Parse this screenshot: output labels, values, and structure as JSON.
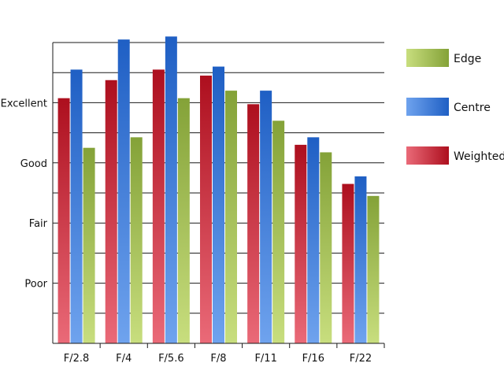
{
  "chart_data": {
    "type": "bar",
    "categories": [
      "F/2.8",
      "F/4",
      "F/5.6",
      "F/8",
      "F/11",
      "F/16",
      "F/22"
    ],
    "series": [
      {
        "name": "Weighted",
        "values": [
          8.15,
          8.75,
          9.1,
          8.9,
          7.95,
          6.6,
          5.3
        ]
      },
      {
        "name": "Centre",
        "values": [
          9.1,
          10.1,
          10.2,
          9.2,
          8.4,
          6.85,
          5.55
        ]
      },
      {
        "name": "Edge",
        "values": [
          6.5,
          6.85,
          8.15,
          8.4,
          7.4,
          6.35,
          4.9
        ]
      }
    ],
    "y_tick_labels": [
      {
        "label": "Poor",
        "value": 2
      },
      {
        "label": "Fair",
        "value": 4
      },
      {
        "label": "Good",
        "value": 6
      },
      {
        "label": "Excellent",
        "value": 8
      }
    ],
    "ylim": [
      0,
      10
    ],
    "grid": true,
    "legend_position": "right",
    "legend": [
      {
        "name": "Edge",
        "color_light": "#c8de7e",
        "color_dark": "#84a238"
      },
      {
        "name": "Centre",
        "color_light": "#6fa3ee",
        "color_dark": "#1f5fc4"
      },
      {
        "name": "Weighted",
        "color_light": "#ea6a78",
        "color_dark": "#ad0f1e"
      }
    ],
    "colors": {
      "Weighted": {
        "light": "#ea6a78",
        "dark": "#ad0f1e"
      },
      "Centre": {
        "light": "#6fa3ee",
        "dark": "#1f5fc4"
      },
      "Edge": {
        "light": "#c8de7e",
        "dark": "#84a238"
      }
    }
  }
}
